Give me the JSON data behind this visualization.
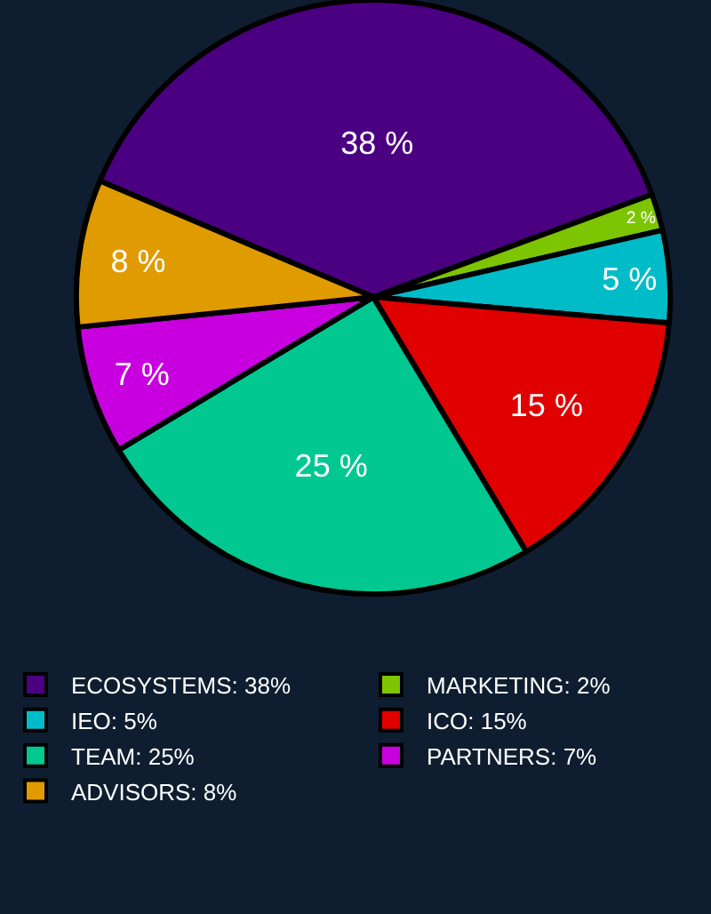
{
  "chart_data": {
    "type": "pie",
    "categories": [
      "ECOSYSTEMS: 38%",
      "MARKETING: 2%",
      "IEO: 5%",
      "ICO: 15%",
      "TEAM: 25%",
      "PARTNERS: 7%",
      "ADVISORS: 8%"
    ],
    "values": [
      38,
      2,
      5,
      15,
      25,
      7,
      8
    ],
    "value_labels": [
      "38 %",
      "2 %",
      "5 %",
      "15 %",
      "25 %",
      "7 %",
      "8 %"
    ],
    "colors": [
      "#4b0082",
      "#7dc500",
      "#00bcc8",
      "#e00000",
      "#00c890",
      "#c800e0",
      "#e09b00"
    ],
    "legend": "bottom"
  }
}
